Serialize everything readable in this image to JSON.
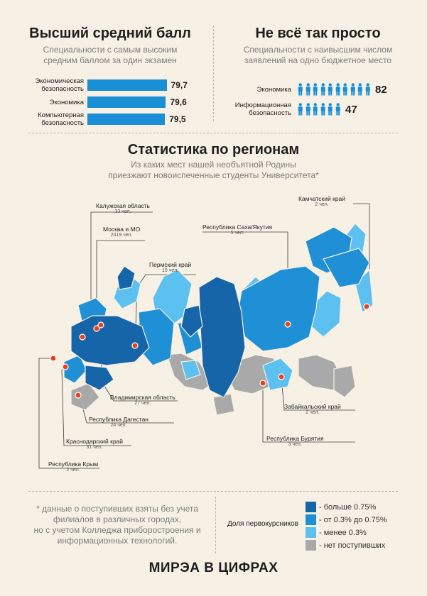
{
  "top_left": {
    "title": "Высший средний балл",
    "subtitle_line1": "Специальности с самым высоким",
    "subtitle_line2": "средним баллом за один экзамен",
    "bars": [
      {
        "label_line1": "Экономическая",
        "label_line2": "безопасность",
        "value": "79,7",
        "fraction": 0.97
      },
      {
        "label_line1": "Экономика",
        "label_line2": "",
        "value": "79,6",
        "fraction": 0.96
      },
      {
        "label_line1": "Компьютерная",
        "label_line2": "безопасность",
        "value": "79,5",
        "fraction": 0.95
      }
    ]
  },
  "top_right": {
    "title": "Не всё так просто",
    "subtitle_line1": "Специальности с наивысшим числом",
    "subtitle_line2": "заявлений на одно бюджетное место",
    "rows": [
      {
        "label_line1": "Экономика",
        "label_line2": "",
        "value": "82",
        "icons": 10
      },
      {
        "label_line1": "Информационная",
        "label_line2": "безопасность",
        "value": "47",
        "icons": 6
      }
    ],
    "icon": "person-icon"
  },
  "regions_section": {
    "title": "Статистика по регионам",
    "subtitle_line1": "Из каких мест нашей необъятной Родины",
    "subtitle_line2": "приезжают новоиспеченные студенты Университета*"
  },
  "regions": [
    {
      "name": "Калужская область",
      "count": "33 чел."
    },
    {
      "name": "Москва и МО",
      "count": "2419 чел."
    },
    {
      "name": "Пермский край",
      "count": "15 чел."
    },
    {
      "name": "Республика Саха/Якутия",
      "count": "5 чел."
    },
    {
      "name": "Камчатский край",
      "count": "2 чел."
    },
    {
      "name": "Владимирская область",
      "count": "27 чел."
    },
    {
      "name": "Республика Дагестан",
      "count": "24 чел."
    },
    {
      "name": "Краснодарский край",
      "count": "31 чел."
    },
    {
      "name": "Республика Крым",
      "count": "2 чел."
    },
    {
      "name": "Забайкальский край",
      "count": "2 чел."
    },
    {
      "name": "Республика Бурятия",
      "count": "3 чел."
    }
  ],
  "footnote": {
    "line1": "* данные о поступивших взяты без учета",
    "line2": "филиалов в различных городах,",
    "line3": "но с учетом Колледжа приборостроения и",
    "line4": "информационных технологий."
  },
  "legend": {
    "title": "Доля первокурсников",
    "items": [
      {
        "label": "- больше 0.75%",
        "color": "#1565a8"
      },
      {
        "label": "- от 0.3% до 0.75%",
        "color": "#1f8fd6"
      },
      {
        "label": "- менее 0.3%",
        "color": "#5cc0f0"
      },
      {
        "label": "- нет поступивших",
        "color": "#a9a9a9"
      }
    ]
  },
  "footer": "МИРЭА В ЦИФРАХ",
  "colors": {
    "accent": "#1a8fd5",
    "marker": "#e8401c",
    "bg": "#f6f1e4"
  }
}
